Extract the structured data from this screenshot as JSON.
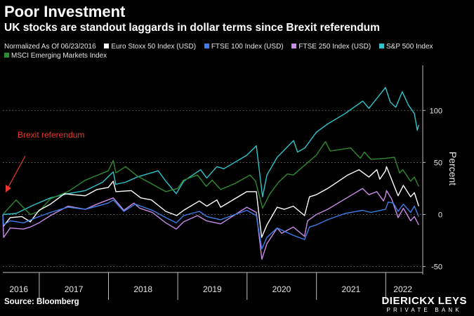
{
  "header": {
    "title": "Poor Investment",
    "subtitle": "UK stocks are standout laggards in dollar terms since Brexit referendum"
  },
  "legend": {
    "note": "Normalized As Of 06/23/2016",
    "entries": [
      {
        "label": "Euro Stoxx 50 Index (USD)",
        "color": "#ffffff"
      },
      {
        "label": "FTSE 100 Index (USD)",
        "color": "#3d7ee8"
      },
      {
        "label": "FTSE 250 Index (USD)",
        "color": "#c98ce8"
      },
      {
        "label": "S&P 500 Index",
        "color": "#2ec4cc"
      },
      {
        "label": "MSCI Emerging Markets Index",
        "color": "#2f8a2f"
      }
    ]
  },
  "footer": {
    "source": "Source: Bloomberg",
    "brand_name": "DIERICKX LEYS",
    "brand_sub": "PRIVATE BANK"
  },
  "chart_data": {
    "type": "line",
    "ylabel": "Percent",
    "ylim": [
      -55,
      142
    ],
    "yticks": [
      100,
      50,
      0,
      -50
    ],
    "xlim": [
      "2016-06-23",
      "2022-07-15"
    ],
    "xticks": [
      {
        "label": "2016",
        "date": "2016-09-15"
      },
      {
        "label": "2017",
        "date": "2017-07-02"
      },
      {
        "label": "2018",
        "date": "2018-07-02"
      },
      {
        "label": "2019",
        "date": "2019-07-02"
      },
      {
        "label": "2020",
        "date": "2020-07-01"
      },
      {
        "label": "2021",
        "date": "2021-07-02"
      },
      {
        "label": "2022",
        "date": "2022-04-01"
      }
    ],
    "year_boundaries": [
      "2017-01-01",
      "2018-01-01",
      "2019-01-01",
      "2020-01-01",
      "2021-01-01",
      "2022-01-01"
    ],
    "grid": "horizontal dotted",
    "annotation": {
      "text": "Brexit referendum",
      "color": "#e8392b",
      "date": "2016-06-23"
    },
    "series": [
      {
        "name": "S&P 500 Index",
        "color": "#2ec4cc",
        "points": [
          [
            "2016-06-23",
            0
          ],
          [
            "2016-09-01",
            1
          ],
          [
            "2016-12-01",
            9
          ],
          [
            "2017-03-01",
            16
          ],
          [
            "2017-06-01",
            20
          ],
          [
            "2017-09-01",
            23
          ],
          [
            "2017-12-01",
            31
          ],
          [
            "2018-01-26",
            41
          ],
          [
            "2018-02-08",
            29
          ],
          [
            "2018-04-01",
            31
          ],
          [
            "2018-06-01",
            36
          ],
          [
            "2018-09-20",
            42
          ],
          [
            "2018-10-30",
            32
          ],
          [
            "2018-12-24",
            20
          ],
          [
            "2019-02-01",
            32
          ],
          [
            "2019-05-01",
            43
          ],
          [
            "2019-06-03",
            35
          ],
          [
            "2019-07-26",
            46
          ],
          [
            "2019-09-01",
            44
          ],
          [
            "2019-12-31",
            57
          ],
          [
            "2020-02-19",
            66
          ],
          [
            "2020-03-23",
            17
          ],
          [
            "2020-04-15",
            38
          ],
          [
            "2020-06-08",
            55
          ],
          [
            "2020-09-02",
            71
          ],
          [
            "2020-09-23",
            60
          ],
          [
            "2020-11-01",
            64
          ],
          [
            "2020-12-31",
            79
          ],
          [
            "2021-03-01",
            87
          ],
          [
            "2021-06-01",
            97
          ],
          [
            "2021-09-02",
            109
          ],
          [
            "2021-10-04",
            102
          ],
          [
            "2021-12-31",
            122
          ],
          [
            "2022-01-25",
            108
          ],
          [
            "2022-02-23",
            103
          ],
          [
            "2022-03-29",
            118
          ],
          [
            "2022-05-01",
            105
          ],
          [
            "2022-06-01",
            97
          ],
          [
            "2022-06-16",
            81
          ],
          [
            "2022-06-24",
            86
          ]
        ]
      },
      {
        "name": "MSCI Emerging Markets Index",
        "color": "#2f8a2f",
        "points": [
          [
            "2016-06-23",
            0
          ],
          [
            "2016-09-01",
            14
          ],
          [
            "2016-11-15",
            0
          ],
          [
            "2016-12-31",
            3
          ],
          [
            "2017-03-01",
            15
          ],
          [
            "2017-06-01",
            22
          ],
          [
            "2017-09-01",
            33
          ],
          [
            "2017-12-31",
            42
          ],
          [
            "2018-01-26",
            52
          ],
          [
            "2018-02-09",
            40
          ],
          [
            "2018-04-01",
            46
          ],
          [
            "2018-06-01",
            37
          ],
          [
            "2018-08-01",
            31
          ],
          [
            "2018-10-30",
            22
          ],
          [
            "2018-12-31",
            25
          ],
          [
            "2019-01-31",
            33
          ],
          [
            "2019-04-15",
            38
          ],
          [
            "2019-05-31",
            27
          ],
          [
            "2019-07-01",
            33
          ],
          [
            "2019-08-15",
            24
          ],
          [
            "2019-11-01",
            30
          ],
          [
            "2020-01-17",
            38
          ],
          [
            "2020-02-15",
            32
          ],
          [
            "2020-03-23",
            6
          ],
          [
            "2020-05-01",
            20
          ],
          [
            "2020-06-15",
            31
          ],
          [
            "2020-08-01",
            39
          ],
          [
            "2020-09-01",
            38
          ],
          [
            "2020-12-31",
            57
          ],
          [
            "2021-02-17",
            70
          ],
          [
            "2021-03-15",
            61
          ],
          [
            "2021-06-30",
            64
          ],
          [
            "2021-08-20",
            54
          ],
          [
            "2021-09-10",
            60
          ],
          [
            "2021-10-15",
            53
          ],
          [
            "2021-12-31",
            54
          ],
          [
            "2022-02-16",
            55
          ],
          [
            "2022-03-15",
            40
          ],
          [
            "2022-04-01",
            43
          ],
          [
            "2022-05-12",
            32
          ],
          [
            "2022-06-01",
            36
          ],
          [
            "2022-06-24",
            27
          ]
        ]
      },
      {
        "name": "Euro Stoxx 50 Index (USD)",
        "color": "#ffffff",
        "points": [
          [
            "2016-06-23",
            0
          ],
          [
            "2016-06-27",
            -11
          ],
          [
            "2016-08-01",
            -3
          ],
          [
            "2016-10-01",
            -2
          ],
          [
            "2016-11-15",
            -7
          ],
          [
            "2016-12-31",
            4
          ],
          [
            "2017-03-01",
            10
          ],
          [
            "2017-05-15",
            20
          ],
          [
            "2017-07-01",
            19
          ],
          [
            "2017-09-01",
            18
          ],
          [
            "2017-11-01",
            24
          ],
          [
            "2017-12-31",
            26
          ],
          [
            "2018-01-26",
            32
          ],
          [
            "2018-02-09",
            22
          ],
          [
            "2018-05-01",
            23
          ],
          [
            "2018-06-20",
            16
          ],
          [
            "2018-08-15",
            14
          ],
          [
            "2018-10-30",
            3
          ],
          [
            "2018-12-27",
            -1
          ],
          [
            "2019-02-01",
            4
          ],
          [
            "2019-04-25",
            13
          ],
          [
            "2019-06-03",
            8
          ],
          [
            "2019-07-26",
            14
          ],
          [
            "2019-08-15",
            7
          ],
          [
            "2019-12-31",
            22
          ],
          [
            "2020-02-19",
            22
          ],
          [
            "2020-03-18",
            -22
          ],
          [
            "2020-04-15",
            -10
          ],
          [
            "2020-06-08",
            7
          ],
          [
            "2020-07-15",
            5
          ],
          [
            "2020-09-01",
            8
          ],
          [
            "2020-10-30",
            -1
          ],
          [
            "2020-11-25",
            17
          ],
          [
            "2020-12-31",
            19
          ],
          [
            "2021-03-01",
            25
          ],
          [
            "2021-06-15",
            38
          ],
          [
            "2021-08-13",
            43
          ],
          [
            "2021-10-04",
            36
          ],
          [
            "2021-11-15",
            43
          ],
          [
            "2021-12-01",
            34
          ],
          [
            "2021-12-31",
            42
          ],
          [
            "2022-01-05",
            46
          ],
          [
            "2022-03-07",
            18
          ],
          [
            "2022-04-04",
            28
          ],
          [
            "2022-05-12",
            17
          ],
          [
            "2022-06-01",
            21
          ],
          [
            "2022-06-24",
            8
          ]
        ]
      },
      {
        "name": "FTSE 250 Index (USD)",
        "color": "#c98ce8",
        "points": [
          [
            "2016-06-23",
            0
          ],
          [
            "2016-06-27",
            -22
          ],
          [
            "2016-08-01",
            -13
          ],
          [
            "2016-10-10",
            -14
          ],
          [
            "2016-11-15",
            -12
          ],
          [
            "2016-12-31",
            -8
          ],
          [
            "2017-03-01",
            -1
          ],
          [
            "2017-06-01",
            8
          ],
          [
            "2017-09-01",
            5
          ],
          [
            "2017-11-01",
            10
          ],
          [
            "2018-01-26",
            16
          ],
          [
            "2018-03-23",
            4
          ],
          [
            "2018-05-15",
            11
          ],
          [
            "2018-06-15",
            6
          ],
          [
            "2018-08-20",
            2
          ],
          [
            "2018-10-30",
            -8
          ],
          [
            "2018-12-24",
            -14
          ],
          [
            "2019-02-01",
            -7
          ],
          [
            "2019-04-15",
            -1
          ],
          [
            "2019-06-01",
            -6
          ],
          [
            "2019-08-15",
            -9
          ],
          [
            "2019-12-13",
            5
          ],
          [
            "2019-12-31",
            7
          ],
          [
            "2020-02-19",
            2
          ],
          [
            "2020-03-19",
            -43
          ],
          [
            "2020-04-15",
            -28
          ],
          [
            "2020-06-08",
            -13
          ],
          [
            "2020-07-01",
            -18
          ],
          [
            "2020-09-01",
            -12
          ],
          [
            "2020-10-30",
            -21
          ],
          [
            "2020-11-15",
            -6
          ],
          [
            "2020-12-31",
            0
          ],
          [
            "2021-03-01",
            5
          ],
          [
            "2021-06-01",
            15
          ],
          [
            "2021-09-01",
            25
          ],
          [
            "2021-10-04",
            19
          ],
          [
            "2021-11-15",
            22
          ],
          [
            "2021-12-20",
            13
          ],
          [
            "2021-12-31",
            18
          ],
          [
            "2022-01-05",
            23
          ],
          [
            "2022-02-01",
            15
          ],
          [
            "2022-03-07",
            -3
          ],
          [
            "2022-04-04",
            6
          ],
          [
            "2022-05-12",
            -6
          ],
          [
            "2022-06-01",
            -2
          ],
          [
            "2022-06-24",
            -10
          ]
        ]
      },
      {
        "name": "FTSE 100 Index (USD)",
        "color": "#3d7ee8",
        "points": [
          [
            "2016-06-23",
            0
          ],
          [
            "2016-06-27",
            -10
          ],
          [
            "2016-08-01",
            -6
          ],
          [
            "2016-10-10",
            -8
          ],
          [
            "2016-12-31",
            -2
          ],
          [
            "2017-03-01",
            2
          ],
          [
            "2017-06-01",
            7
          ],
          [
            "2017-09-01",
            5
          ],
          [
            "2017-12-31",
            11
          ],
          [
            "2018-01-26",
            14
          ],
          [
            "2018-03-23",
            3
          ],
          [
            "2018-05-22",
            10
          ],
          [
            "2018-08-20",
            4
          ],
          [
            "2018-10-30",
            -3
          ],
          [
            "2018-12-24",
            -8
          ],
          [
            "2019-02-01",
            -1
          ],
          [
            "2019-04-25",
            3
          ],
          [
            "2019-06-03",
            -2
          ],
          [
            "2019-08-15",
            -5
          ],
          [
            "2019-12-31",
            4
          ],
          [
            "2020-02-19",
            -1
          ],
          [
            "2020-03-19",
            -33
          ],
          [
            "2020-04-15",
            -22
          ],
          [
            "2020-06-08",
            -13
          ],
          [
            "2020-09-01",
            -20
          ],
          [
            "2020-10-30",
            -24
          ],
          [
            "2020-11-25",
            -12
          ],
          [
            "2020-12-31",
            -10
          ],
          [
            "2021-03-01",
            -5
          ],
          [
            "2021-06-01",
            1
          ],
          [
            "2021-09-01",
            4
          ],
          [
            "2021-10-15",
            2
          ],
          [
            "2021-12-31",
            5
          ],
          [
            "2022-01-14",
            12
          ],
          [
            "2022-02-10",
            11
          ],
          [
            "2022-03-07",
            3
          ],
          [
            "2022-04-04",
            10
          ],
          [
            "2022-05-12",
            2
          ],
          [
            "2022-06-01",
            8
          ],
          [
            "2022-06-24",
            -2
          ]
        ]
      }
    ]
  }
}
